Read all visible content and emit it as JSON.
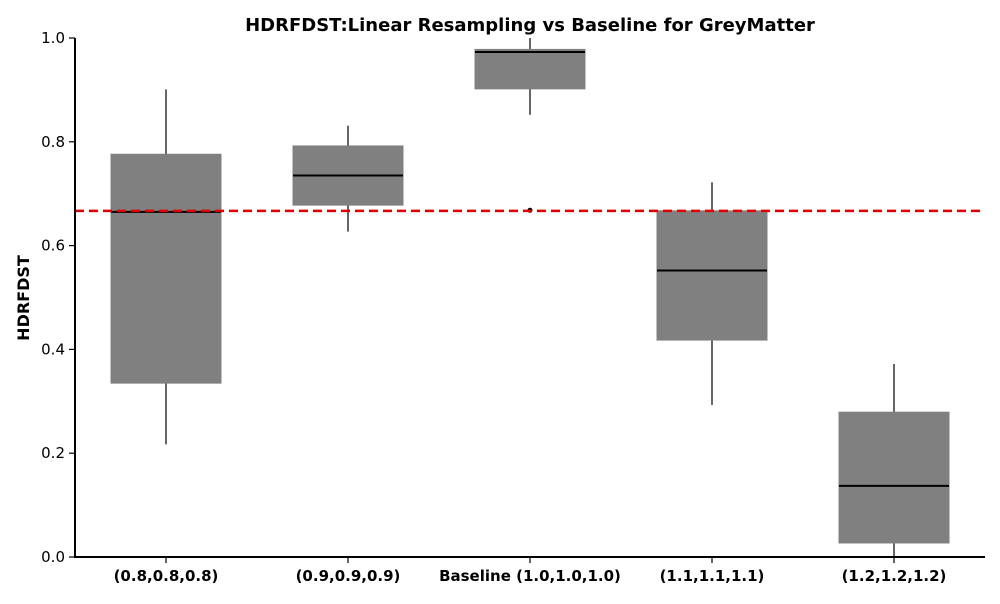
{
  "chart_data": {
    "type": "box",
    "title": "HDRFDST:Linear Resampling vs Baseline for GreyMatter",
    "xlabel": "",
    "ylabel": "HDRFDST",
    "ylim": [
      0.0,
      1.0
    ],
    "yticks": [
      "0.0",
      "0.2",
      "0.4",
      "0.6",
      "0.8",
      "1.0"
    ],
    "categories": [
      "(0.8,0.8,0.8)",
      "(0.9,0.9,0.9)",
      "Baseline (1.0,1.0,1.0)",
      "(1.1,1.1,1.1)",
      "(1.2,1.2,1.2)"
    ],
    "boxes": [
      {
        "whisker_low": 0.217,
        "q1": 0.335,
        "median": 0.665,
        "q3": 0.776,
        "whisker_high": 0.901,
        "outliers": []
      },
      {
        "whisker_low": 0.627,
        "q1": 0.678,
        "median": 0.735,
        "q3": 0.792,
        "whisker_high": 0.831,
        "outliers": []
      },
      {
        "whisker_low": 0.852,
        "q1": 0.902,
        "median": 0.973,
        "q3": 0.978,
        "whisker_high": 1.0,
        "outliers": [
          0.668
        ]
      },
      {
        "whisker_low": 0.293,
        "q1": 0.418,
        "median": 0.552,
        "q3": 0.667,
        "whisker_high": 0.722,
        "outliers": []
      },
      {
        "whisker_low": 0.0,
        "q1": 0.027,
        "median": 0.137,
        "q3": 0.279,
        "whisker_high": 0.372,
        "outliers": []
      }
    ],
    "reference_line": {
      "value": 0.667,
      "color": "#dd0000",
      "style": "dashed"
    },
    "box_color": "#808080",
    "grid": false,
    "legend": "none"
  }
}
